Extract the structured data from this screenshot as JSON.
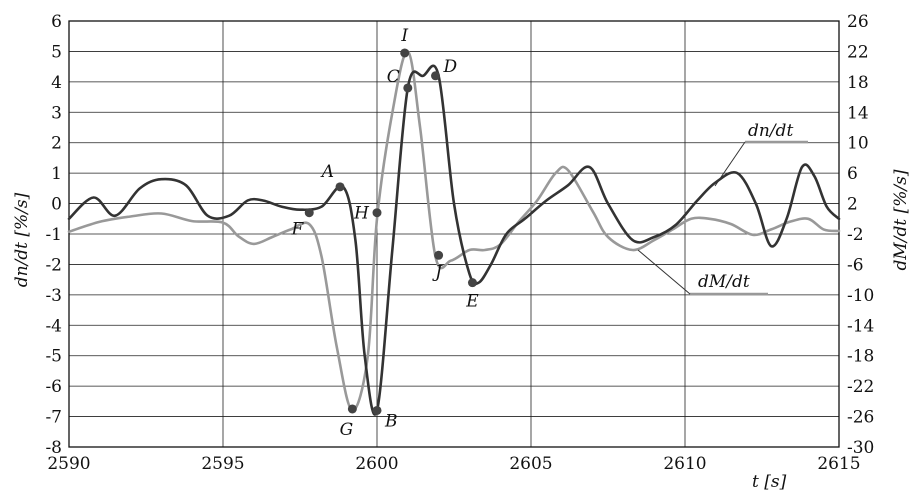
{
  "chart_data": {
    "type": "line",
    "xlabel": "t [s]",
    "ylabel_left": "dn/dt  [%/s]",
    "ylabel_right": "dM/dt  [%/s]",
    "xlim": [
      2590,
      2615
    ],
    "ylim_left": [
      -8,
      6
    ],
    "ylim_right": [
      -30,
      26
    ],
    "grid": true,
    "x_ticks": [
      2590,
      2595,
      2600,
      2605,
      2610,
      2615
    ],
    "y_ticks_left": [
      6,
      5,
      4,
      3,
      2,
      1,
      0,
      -1,
      -2,
      -3,
      -4,
      -5,
      -6,
      -7,
      -8
    ],
    "y_ticks_right": [
      26,
      22,
      18,
      14,
      10,
      6,
      2,
      -2,
      -6,
      -10,
      -14,
      -18,
      -22,
      -26,
      -30
    ],
    "series": [
      {
        "name": "dn/dt",
        "axis": "left",
        "color": "#333333",
        "x": [
          2590,
          2590.8,
          2591.5,
          2592.3,
          2593,
          2593.8,
          2594.5,
          2595.2,
          2595.8,
          2596.3,
          2596.9,
          2597.5,
          2598.2,
          2598.9,
          2599.3,
          2599.6,
          2600,
          2600.5,
          2601,
          2601.5,
          2602,
          2602.5,
          2603,
          2603.3,
          2603.7,
          2604.2,
          2604.8,
          2605.5,
          2606.2,
          2606.9,
          2607.5,
          2608.3,
          2609,
          2609.7,
          2610.4,
          2611,
          2611.7,
          2612.3,
          2612.8,
          2613.3,
          2613.8,
          2614.2,
          2614.6,
          2615
        ],
        "y": [
          -0.5,
          0.2,
          -0.4,
          0.5,
          0.8,
          0.6,
          -0.4,
          -0.4,
          0.1,
          0.1,
          -0.1,
          -0.2,
          -0.1,
          0.55,
          -1.2,
          -5.0,
          -6.8,
          -1.5,
          3.8,
          4.2,
          4.2,
          0.0,
          -2.3,
          -2.6,
          -2.0,
          -1.0,
          -0.5,
          0.1,
          0.6,
          1.2,
          0.0,
          -1.2,
          -1.1,
          -0.7,
          0.1,
          0.7,
          1.0,
          0.0,
          -1.4,
          -0.5,
          1.2,
          0.9,
          -0.1,
          -0.5
        ]
      },
      {
        "name": "dM/dt",
        "axis": "right",
        "color": "#999999",
        "x": [
          2590,
          2591,
          2592,
          2593,
          2594,
          2595,
          2595.5,
          2596,
          2596.6,
          2597.2,
          2597.8,
          2598.2,
          2598.7,
          2599.2,
          2599.7,
          2600,
          2600.5,
          2601,
          2601.4,
          2601.9,
          2602.4,
          2603,
          2603.5,
          2604,
          2604.6,
          2605.2,
          2605.8,
          2606.2,
          2607,
          2607.5,
          2608.3,
          2609,
          2609.6,
          2610.2,
          2610.8,
          2611.5,
          2612.2,
          2612.8,
          2613.4,
          2614,
          2614.5,
          2615
        ],
        "y": [
          -1.7,
          -0.4,
          0.3,
          0.7,
          -0.3,
          -0.5,
          -2.3,
          -3.3,
          -2.4,
          -1.4,
          -0.7,
          -5,
          -17,
          -25.2,
          -18,
          0,
          14,
          22,
          12,
          -5,
          -5.5,
          -4.1,
          -4.1,
          -3.4,
          -0.4,
          2.4,
          6,
          6.4,
          1,
          -2.4,
          -4.1,
          -2.8,
          -1.4,
          0,
          0,
          -0.7,
          -2.1,
          -1.4,
          -0.4,
          0,
          -1.4,
          -1.6
        ]
      }
    ],
    "annotations": [
      {
        "text": "A",
        "x": 2598.8,
        "y": 0.55,
        "axis": "left"
      },
      {
        "text": "B",
        "x": 2600.0,
        "y": -6.8,
        "axis": "left"
      },
      {
        "text": "C",
        "x": 2601.0,
        "y": 3.8,
        "axis": "left"
      },
      {
        "text": "D",
        "x": 2601.9,
        "y": 4.2,
        "axis": "left"
      },
      {
        "text": "E",
        "x": 2603.1,
        "y": -2.6,
        "axis": "left"
      },
      {
        "text": "F",
        "x": 2597.8,
        "y": -0.3,
        "axis": "left"
      },
      {
        "text": "G",
        "x": 2599.2,
        "y": -6.75,
        "axis": "left"
      },
      {
        "text": "H",
        "x": 2600.0,
        "y": -0.3,
        "axis": "left"
      },
      {
        "text": "I",
        "x": 2600.9,
        "y": 4.95,
        "axis": "left"
      },
      {
        "text": "J",
        "x": 2602.0,
        "y": -1.7,
        "axis": "left"
      }
    ],
    "legend": [
      {
        "label": "dn/dt",
        "series": "dn/dt"
      },
      {
        "label": "dM/dt",
        "series": "dM/dt"
      }
    ]
  }
}
